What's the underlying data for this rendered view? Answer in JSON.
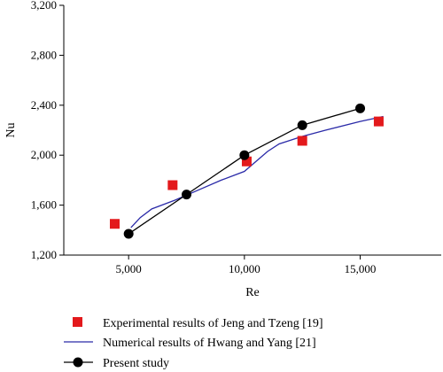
{
  "chart_data": {
    "type": "scatter",
    "xlabel": "Re",
    "ylabel": "Nu",
    "xlim": [
      2200,
      18500
    ],
    "ylim": [
      1200,
      3200
    ],
    "x_ticks": [
      5000,
      10000,
      15000
    ],
    "x_tick_labels": [
      "5,000",
      "10,000",
      "15,000"
    ],
    "y_ticks": [
      1200,
      1600,
      2000,
      2400,
      2800,
      3200
    ],
    "y_tick_labels": [
      "1,200",
      "1,600",
      "2,000",
      "2,400",
      "2,800",
      "3,200"
    ],
    "grid": false,
    "legend_position": "bottom",
    "series": [
      {
        "name": "Experimental results of Jeng and Tzeng [19]",
        "style": "square-markers",
        "color": "#e3191c",
        "points": [
          [
            4400,
            1450
          ],
          [
            6900,
            1760
          ],
          [
            10100,
            1950
          ],
          [
            12500,
            2115
          ],
          [
            15800,
            2270
          ]
        ]
      },
      {
        "name": "Numerical results of Hwang and Yang [21]",
        "style": "line",
        "color": "#2a2aa8",
        "points": [
          [
            5100,
            1420
          ],
          [
            5500,
            1500
          ],
          [
            6000,
            1570
          ],
          [
            7000,
            1640
          ],
          [
            8000,
            1720
          ],
          [
            9000,
            1800
          ],
          [
            10000,
            1870
          ],
          [
            11000,
            2030
          ],
          [
            11500,
            2090
          ],
          [
            12500,
            2150
          ],
          [
            13500,
            2200
          ],
          [
            15000,
            2270
          ],
          [
            16000,
            2310
          ]
        ]
      },
      {
        "name": "Present study",
        "style": "line-circle-markers",
        "color": "#000000",
        "points": [
          [
            5000,
            1370
          ],
          [
            7500,
            1685
          ],
          [
            10000,
            2000
          ],
          [
            12500,
            2240
          ],
          [
            15000,
            2375
          ]
        ]
      }
    ]
  }
}
